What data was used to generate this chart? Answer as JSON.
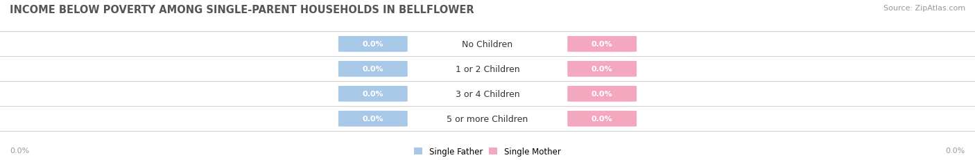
{
  "title": "INCOME BELOW POVERTY AMONG SINGLE-PARENT HOUSEHOLDS IN BELLFLOWER",
  "source": "Source: ZipAtlas.com",
  "categories": [
    "No Children",
    "1 or 2 Children",
    "3 or 4 Children",
    "5 or more Children"
  ],
  "single_father_values": [
    0.0,
    0.0,
    0.0,
    0.0
  ],
  "single_mother_values": [
    0.0,
    0.0,
    0.0,
    0.0
  ],
  "father_color": "#a8c8e8",
  "mother_color": "#f4a8c0",
  "row_bg_odd": "#f5f5f5",
  "row_bg_even": "#ececec",
  "title_fontsize": 10.5,
  "source_fontsize": 8,
  "bar_label_fontsize": 8,
  "cat_label_fontsize": 9,
  "axis_label_fontsize": 8,
  "legend_fontsize": 8.5,
  "background_color": "#ffffff",
  "legend_father_label": "Single Father",
  "legend_mother_label": "Single Mother",
  "axis_value": "0.0%",
  "separator_color": "#d0d0d0",
  "title_color": "#555555",
  "source_color": "#999999",
  "axis_color": "#999999",
  "cat_text_color": "#333333"
}
